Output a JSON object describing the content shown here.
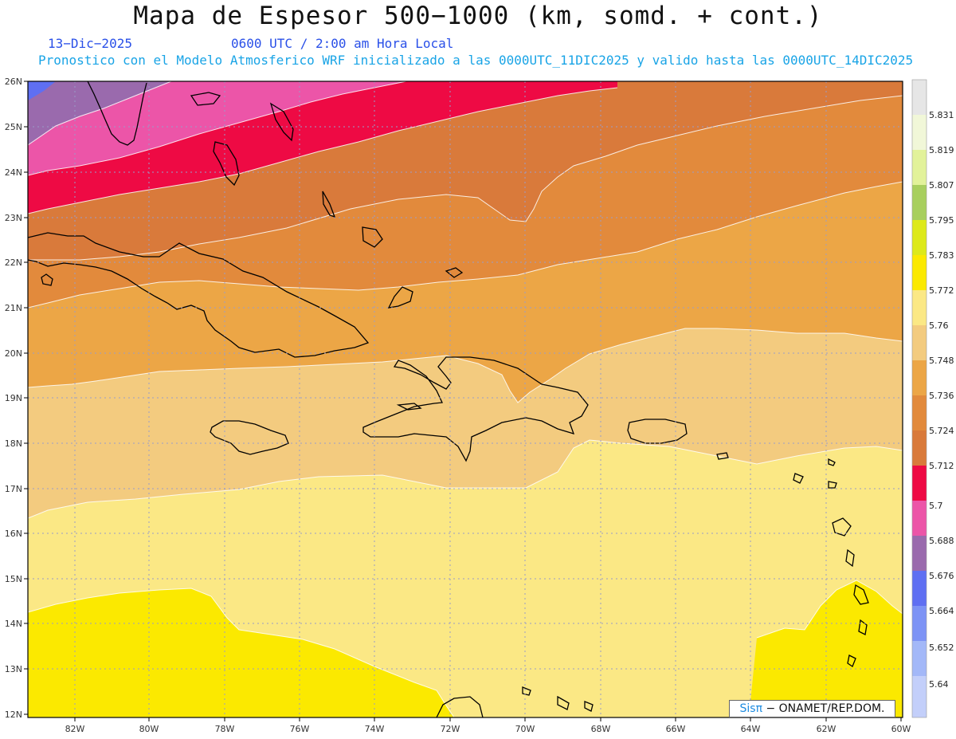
{
  "header": {
    "title": "Mapa de Espesor 500−1000 (km, somd. + cont.)",
    "date": "13−Dic−2025",
    "time": "0600 UTC / 2:00 am Hora Local",
    "subtitle": "Pronostico con el Modelo Atmosferico WRF inicializado a las 0000UTC_11DIC2025 y valido hasta las  0000UTC_14DIC2025"
  },
  "map": {
    "lat_labels": [
      "26N",
      "25N",
      "24N",
      "23N",
      "22N",
      "21N",
      "20N",
      "19N",
      "18N",
      "17N",
      "16N",
      "15N",
      "14N",
      "13N",
      "12N"
    ],
    "lon_labels": [
      "82W",
      "80W",
      "78W",
      "76W",
      "74W",
      "72W",
      "70W",
      "68W",
      "66W",
      "64W",
      "62W",
      "60W"
    ]
  },
  "legend": {
    "labels": [
      "5.831",
      "5.819",
      "5.807",
      "5.795",
      "5.783",
      "5.772",
      "5.76",
      "5.748",
      "5.736",
      "5.724",
      "5.712",
      "5.7",
      "5.688",
      "5.676",
      "5.664",
      "5.652",
      "5.64"
    ],
    "colors": [
      "#e6e6e6",
      "#f1f7d8",
      "#e2f29a",
      "#a8cf5e",
      "#dde91a",
      "#fbe900",
      "#fbe885",
      "#f3cb7f",
      "#eca646",
      "#e28a3c",
      "#d97a3b",
      "#ee0a44",
      "#ec55a8",
      "#9a6aad",
      "#5f6ff2",
      "#7d93f5",
      "#a3b8f8",
      "#c3cffa"
    ]
  },
  "credit": {
    "brand_a": "Sis",
    "brand_b": "π",
    "text": "− ONAMET/REP.DOM."
  }
}
